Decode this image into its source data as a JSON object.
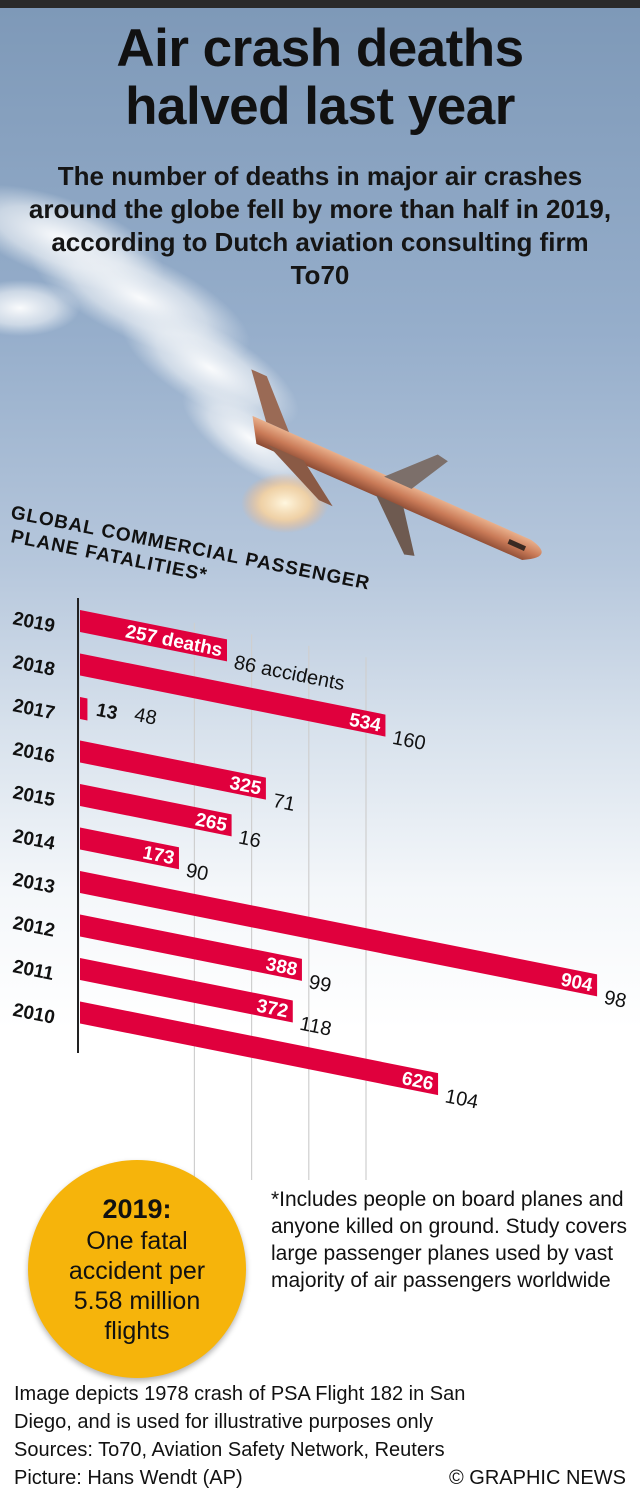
{
  "title_line1": "Air crash deaths",
  "title_line2": "halved last year",
  "subtitle": "The number of deaths in major air crashes around the globe fell by more than half in 2019, according to Dutch aviation consulting firm To70",
  "colors": {
    "bar": "#e0003d",
    "badge": "#f6b40b",
    "topbar": "#2a2a2a"
  },
  "chart_data": {
    "type": "bar",
    "title_line1": "Global Commercial Passenger",
    "title_line2": "Plane Fatalities*",
    "categories": [
      "2019",
      "2018",
      "2017",
      "2016",
      "2015",
      "2014",
      "2013",
      "2012",
      "2011",
      "2010"
    ],
    "series": [
      {
        "name": "deaths",
        "values": [
          257,
          534,
          13,
          325,
          265,
          173,
          904,
          388,
          372,
          626
        ]
      },
      {
        "name": "accidents",
        "values": [
          86,
          160,
          48,
          71,
          16,
          90,
          98,
          99,
          118,
          104
        ]
      }
    ],
    "first_death_label": "257 deaths",
    "first_accident_label": "86 accidents",
    "grid": true
  },
  "badge": {
    "year": "2019:",
    "text": "One fatal accident per 5.58 million flights"
  },
  "footnote": "*Includes people on board planes and anyone killed on ground. Study covers large passenger planes used by vast majority of air passengers worldwide",
  "credit_line1": "Image depicts 1978 crash of PSA Flight 182 in San",
  "credit_line2": "Diego, and is used for illustrative purposes only",
  "credit_line3": "Sources: To70, Aviation Safety Network, Reuters",
  "credit_line4": "Picture: Hans Wendt (AP)",
  "copyright": "© GRAPHIC NEWS"
}
